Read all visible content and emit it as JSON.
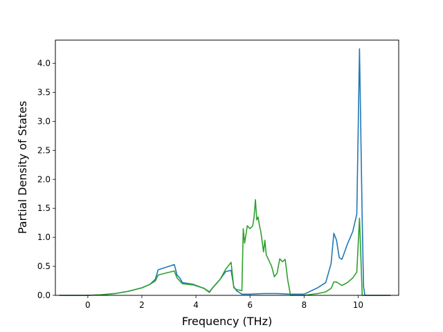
{
  "chart_data": {
    "type": "line",
    "title": "",
    "xlabel": "Frequency (THz)",
    "ylabel": "Partial Density of States",
    "xlim": [
      -1.2,
      11.5
    ],
    "ylim": [
      0,
      4.4
    ],
    "x_ticks": [
      0,
      2,
      4,
      6,
      8,
      10
    ],
    "x_tick_labels": [
      "0",
      "2",
      "4",
      "6",
      "8",
      "10"
    ],
    "y_ticks": [
      0.0,
      0.5,
      1.0,
      1.5,
      2.0,
      2.5,
      3.0,
      3.5,
      4.0
    ],
    "y_tick_labels": [
      "0.0",
      "0.5",
      "1.0",
      "1.5",
      "2.0",
      "2.5",
      "3.0",
      "3.5",
      "4.0"
    ],
    "grid": false,
    "legend": "none",
    "series": [
      {
        "color": "#1f77b4",
        "x": [
          -1.05,
          -0.5,
          0.0,
          0.5,
          1.0,
          1.5,
          2.0,
          2.3,
          2.5,
          2.6,
          3.2,
          3.3,
          3.4,
          3.5,
          3.9,
          4.3,
          4.5,
          4.6,
          4.9,
          5.1,
          5.3,
          5.4,
          5.5,
          5.7,
          6.0,
          6.5,
          7.0,
          7.5,
          8.0,
          8.5,
          8.8,
          9.0,
          9.1,
          9.2,
          9.3,
          9.4,
          9.5,
          9.6,
          9.8,
          9.95,
          10.05,
          10.15,
          10.2,
          10.25,
          11.2
        ],
        "y": [
          0.0,
          0.0,
          0.0,
          0.01,
          0.03,
          0.07,
          0.13,
          0.19,
          0.28,
          0.44,
          0.53,
          0.35,
          0.3,
          0.22,
          0.19,
          0.12,
          0.06,
          0.12,
          0.28,
          0.41,
          0.43,
          0.15,
          0.08,
          0.02,
          0.02,
          0.03,
          0.03,
          0.02,
          0.02,
          0.13,
          0.22,
          0.55,
          1.07,
          0.95,
          0.65,
          0.62,
          0.75,
          0.88,
          1.1,
          1.4,
          4.25,
          1.3,
          0.15,
          0.0,
          0.0
        ]
      },
      {
        "color": "#2ca02c",
        "x": [
          -1.05,
          -0.5,
          0.0,
          0.5,
          1.0,
          1.5,
          2.0,
          2.3,
          2.5,
          2.6,
          3.2,
          3.3,
          3.4,
          3.5,
          3.9,
          4.3,
          4.5,
          4.6,
          4.9,
          5.1,
          5.3,
          5.4,
          5.5,
          5.7,
          5.75,
          5.8,
          5.9,
          6.0,
          6.1,
          6.15,
          6.2,
          6.25,
          6.3,
          6.35,
          6.4,
          6.5,
          6.55,
          6.6,
          6.7,
          6.8,
          6.9,
          7.0,
          7.1,
          7.2,
          7.25,
          7.3,
          7.4,
          7.5,
          7.6,
          8.0,
          8.5,
          8.8,
          9.0,
          9.1,
          9.2,
          9.4,
          9.6,
          9.8,
          9.95,
          10.05,
          10.15,
          11.2
        ],
        "y": [
          0.0,
          0.0,
          0.0,
          0.01,
          0.03,
          0.07,
          0.13,
          0.19,
          0.25,
          0.35,
          0.42,
          0.3,
          0.25,
          0.2,
          0.18,
          0.12,
          0.05,
          0.12,
          0.28,
          0.45,
          0.57,
          0.13,
          0.1,
          0.08,
          1.15,
          0.9,
          1.2,
          1.15,
          1.2,
          1.35,
          1.65,
          1.3,
          1.35,
          1.2,
          1.1,
          0.75,
          0.95,
          0.7,
          0.6,
          0.5,
          0.32,
          0.38,
          0.63,
          0.58,
          0.6,
          0.62,
          0.25,
          0.0,
          0.0,
          0.0,
          0.03,
          0.06,
          0.12,
          0.23,
          0.23,
          0.17,
          0.22,
          0.3,
          0.4,
          1.33,
          0.0,
          0.0
        ]
      }
    ]
  }
}
